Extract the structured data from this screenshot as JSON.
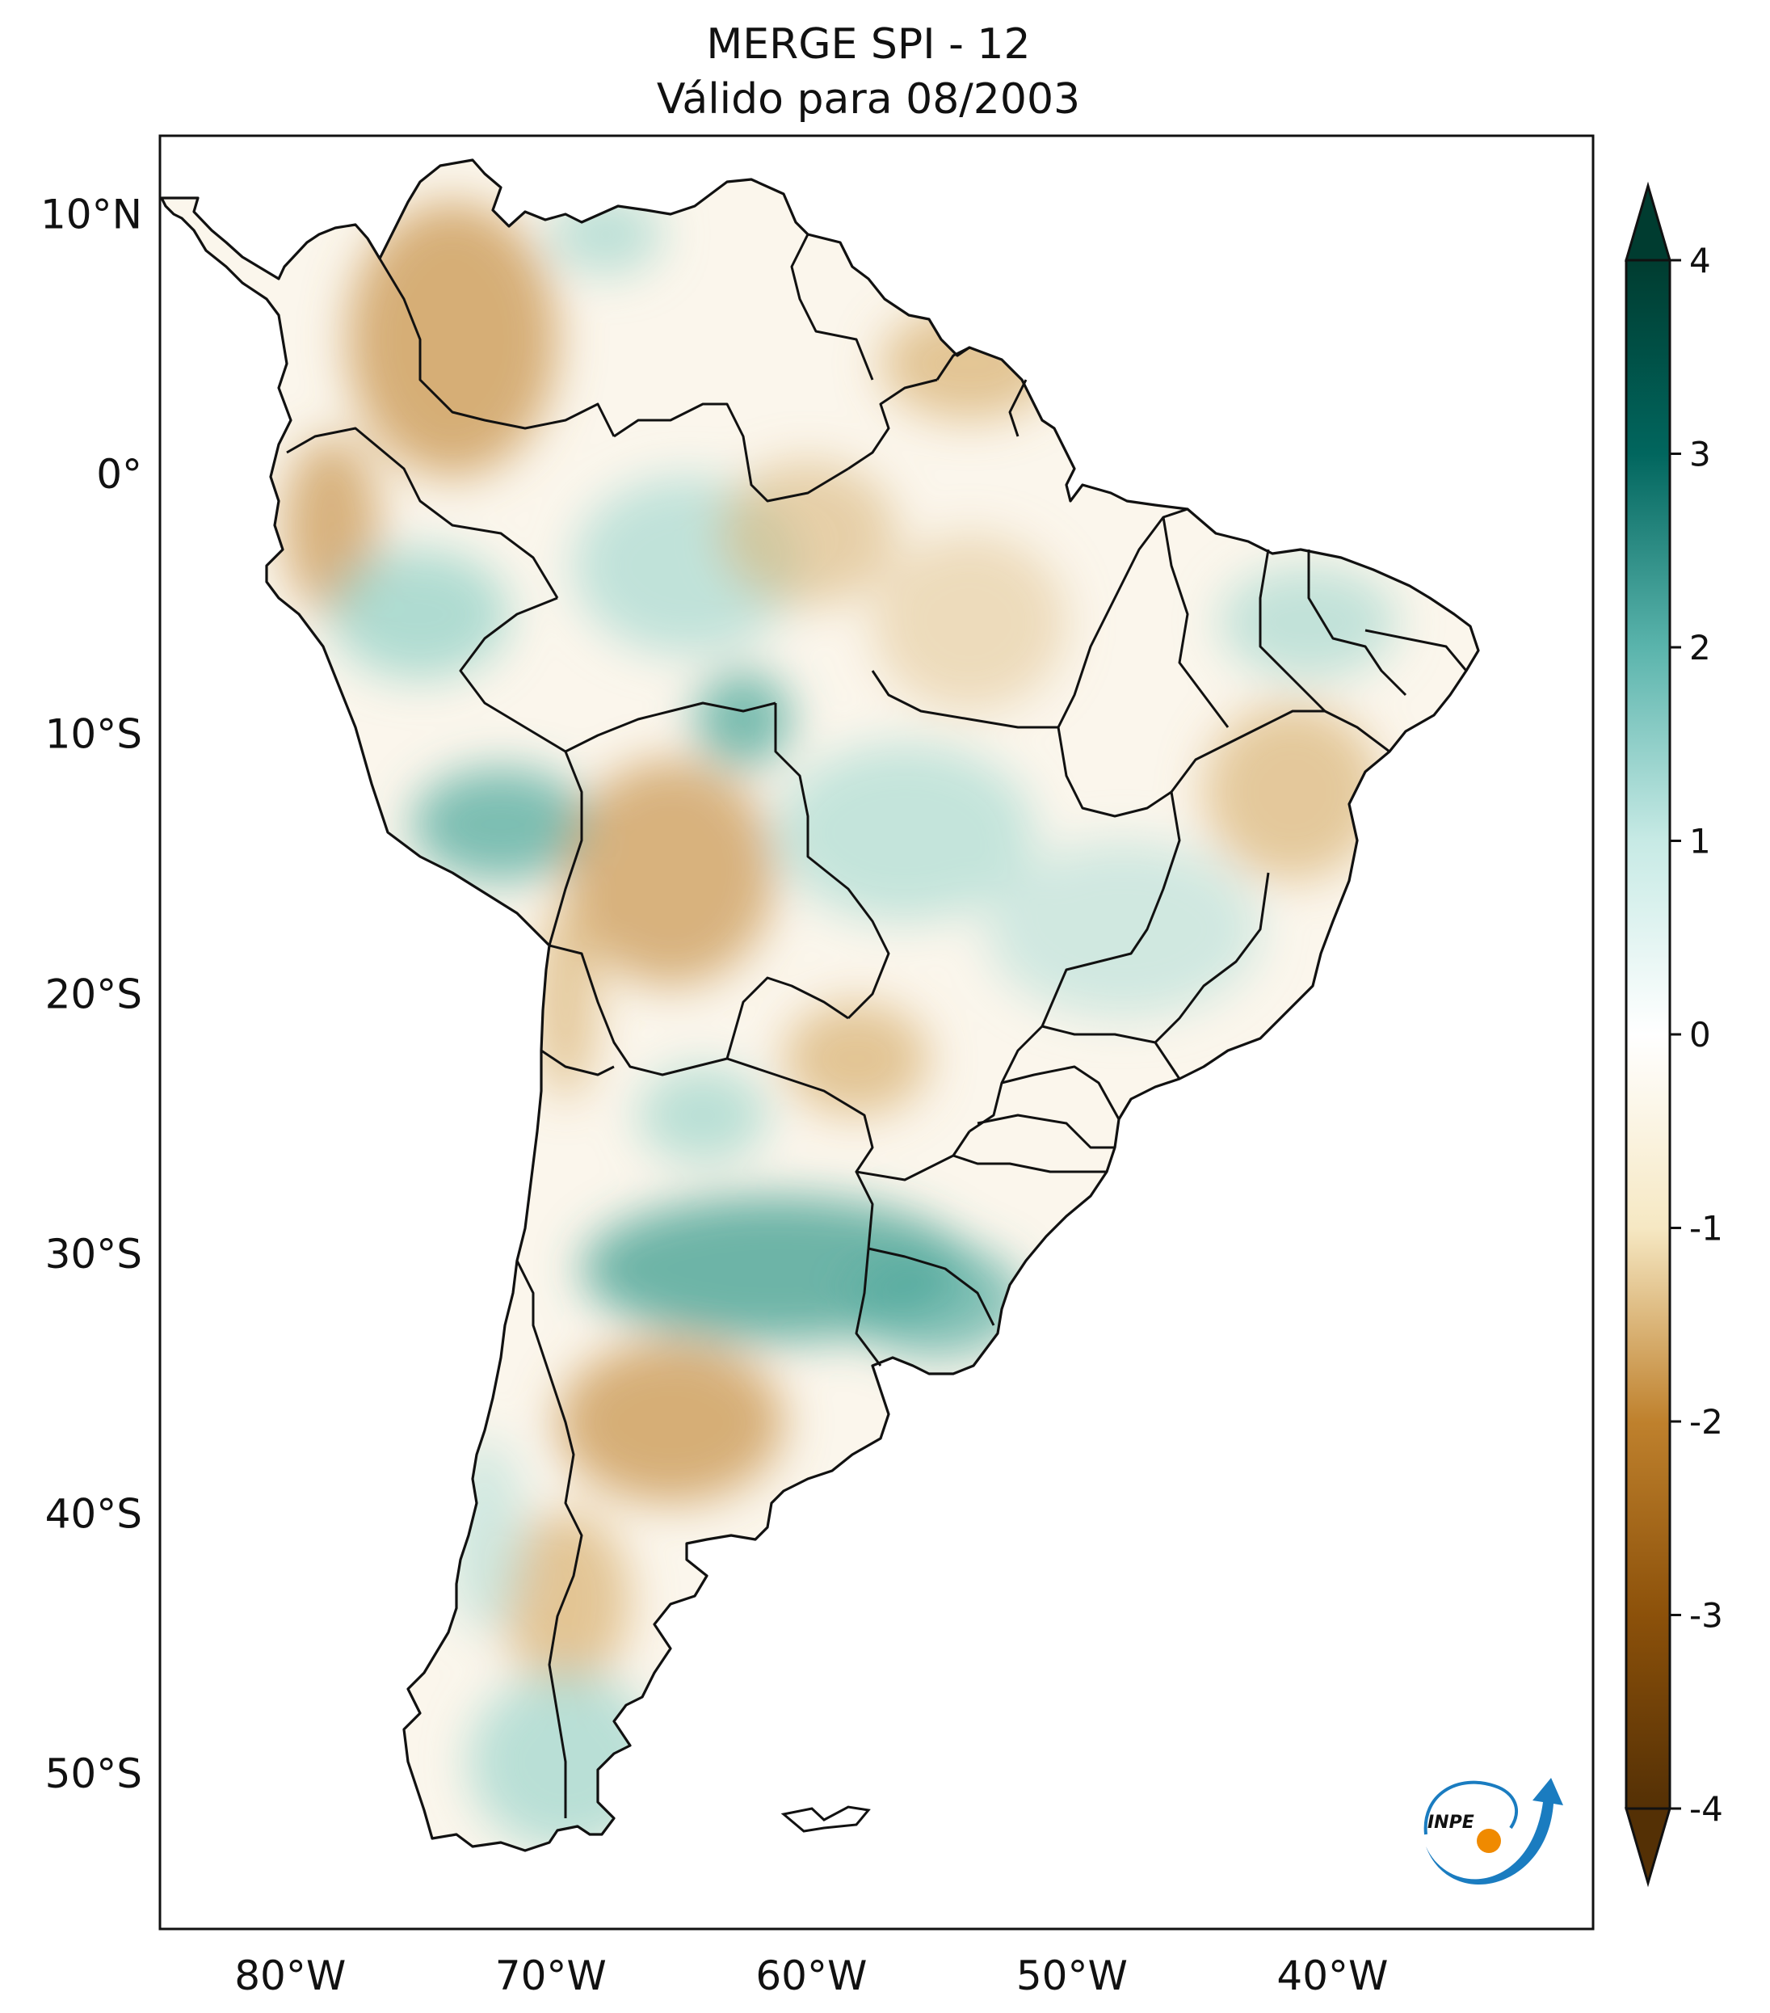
{
  "title": {
    "line1": "MERGE   SPI - 12",
    "line2": "Válido para 08/2003"
  },
  "map": {
    "lat_labels": [
      {
        "label": "10°N",
        "lat": 10
      },
      {
        "label": "0°",
        "lat": 0
      },
      {
        "label": "10°S",
        "lat": -10
      },
      {
        "label": "20°S",
        "lat": -20
      },
      {
        "label": "30°S",
        "lat": -30
      },
      {
        "label": "40°S",
        "lat": -40
      },
      {
        "label": "50°S",
        "lat": -50
      }
    ],
    "lon_labels": [
      {
        "label": "80°W",
        "lon": -80
      },
      {
        "label": "70°W",
        "lon": -70
      },
      {
        "label": "60°W",
        "lon": -60
      },
      {
        "label": "50°W",
        "lon": -50
      },
      {
        "label": "40°W",
        "lon": -40
      }
    ],
    "extent": {
      "lon_min": -85,
      "lon_max": -30,
      "lat_min": -56,
      "lat_max": 13
    },
    "colors": {
      "dry_extreme": "#543005",
      "dry": "#bf812d",
      "neutral": "#ffffff",
      "wet": "#80cdc1",
      "wet_extreme": "#003c30"
    }
  },
  "colorbar": {
    "ticks": [
      {
        "label": "4",
        "value": 4
      },
      {
        "label": "3",
        "value": 3
      },
      {
        "label": "2",
        "value": 2
      },
      {
        "label": "1",
        "value": 1
      },
      {
        "label": "0",
        "value": 0
      },
      {
        "label": "-1",
        "value": -1
      },
      {
        "label": "-2",
        "value": -2
      },
      {
        "label": "-3",
        "value": -3
      },
      {
        "label": "-4",
        "value": -4
      }
    ],
    "min": -4,
    "max": 4,
    "extend": "both"
  },
  "logo": {
    "text": "INPE"
  }
}
